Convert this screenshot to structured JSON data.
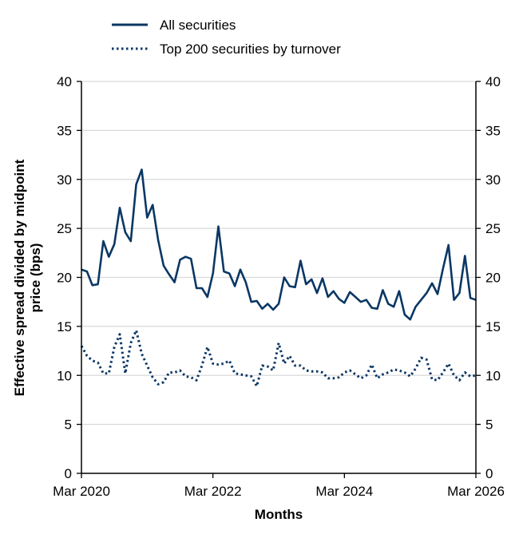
{
  "chart_data": {
    "type": "line",
    "title": "",
    "xlabel": "Months",
    "ylabel": "Effective spread divided by midpoint price (bps)",
    "ylim": [
      0,
      40
    ],
    "yticks": [
      "0",
      "5",
      "10",
      "15",
      "20",
      "25",
      "30",
      "35",
      "40"
    ],
    "xtick_labels": [
      "Mar 2020",
      "Mar 2022",
      "Mar 2024",
      "Mar 2026"
    ],
    "x_start": "2020-03",
    "x_end": "2026-03",
    "grid": "horizontal",
    "legend_position": "top",
    "color": "#0a3764",
    "series": [
      {
        "name": "All securities",
        "style": "solid",
        "values": [
          20.8,
          20.6,
          19.2,
          19.3,
          23.7,
          22.1,
          23.4,
          27.1,
          24.6,
          23.7,
          29.5,
          31.0,
          26.1,
          27.4,
          23.8,
          21.2,
          20.3,
          19.5,
          21.8,
          22.1,
          21.9,
          18.9,
          18.9,
          18.0,
          20.4,
          25.2,
          20.6,
          20.4,
          19.1,
          20.8,
          19.5,
          17.5,
          17.6,
          16.8,
          17.3,
          16.7,
          17.3,
          20.0,
          19.1,
          19.0,
          21.7,
          19.3,
          19.8,
          18.4,
          19.9,
          18.0,
          18.6,
          17.8,
          17.4,
          18.5,
          18.0,
          17.5,
          17.7,
          16.9,
          16.8,
          18.7,
          17.3,
          17.0,
          18.6,
          16.2,
          15.7,
          17.0,
          17.7,
          18.4,
          19.4,
          18.3,
          20.9,
          23.3,
          17.7,
          18.4,
          22.2,
          17.9,
          17.7
        ]
      },
      {
        "name": "Top 200 securities by turnover",
        "style": "dotted",
        "values": [
          13.0,
          12.0,
          11.5,
          11.3,
          10.2,
          10.2,
          12.9,
          14.2,
          10.2,
          13.3,
          14.6,
          12.2,
          11.0,
          9.8,
          9.1,
          9.3,
          10.3,
          10.3,
          10.5,
          9.9,
          9.8,
          9.5,
          11.0,
          12.9,
          11.2,
          11.1,
          11.2,
          11.5,
          10.2,
          10.1,
          10.0,
          9.9,
          8.9,
          11.0,
          10.9,
          10.5,
          13.3,
          11.2,
          12.0,
          11.0,
          11.0,
          10.5,
          10.4,
          10.4,
          10.3,
          9.7,
          9.7,
          9.8,
          10.3,
          10.5,
          10.1,
          9.7,
          10.0,
          11.1,
          9.7,
          10.1,
          10.3,
          10.6,
          10.5,
          10.3,
          9.9,
          10.7,
          11.8,
          11.6,
          9.6,
          9.5,
          10.3,
          11.2,
          10.0,
          9.5,
          10.3,
          9.9,
          10.0
        ]
      }
    ]
  }
}
